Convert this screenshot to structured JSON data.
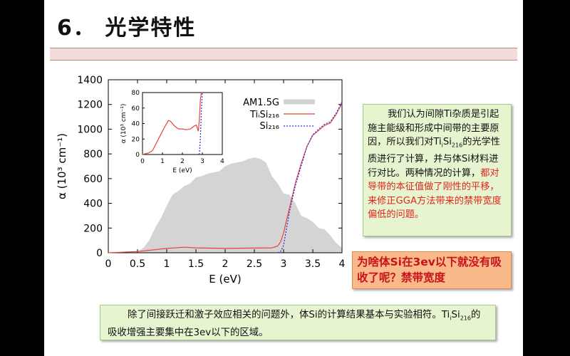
{
  "slide": {
    "title": "6． 光学特性"
  },
  "chart_data": [
    {
      "type": "area",
      "xlabel": "E (eV)",
      "ylabel": "α (10³ cm⁻¹)",
      "xlim": [
        0,
        4
      ],
      "ylim": [
        0,
        1400
      ],
      "x_ticks": [
        "0",
        "0.5",
        "1",
        "1.5",
        "2",
        "2.5",
        "3",
        "3.5",
        "4"
      ],
      "y_ticks": [
        "0",
        "200",
        "400",
        "600",
        "800",
        "1000",
        "1200",
        "1400"
      ],
      "legend": [
        "AM1.5G",
        "TiᵢSi₂₁₆",
        "Si₂₁₆"
      ],
      "series": [
        {
          "name": "AM1.5G",
          "x": [
            0.3,
            0.5,
            0.6,
            0.7,
            0.8,
            0.9,
            1.0,
            1.1,
            1.2,
            1.3,
            1.4,
            1.5,
            1.6,
            1.7,
            1.8,
            1.9,
            2.0,
            2.1,
            2.2,
            2.3,
            2.4,
            2.5,
            2.6,
            2.7,
            2.8,
            2.9,
            3.0,
            3.1,
            3.2,
            3.3,
            3.4,
            3.5,
            3.6,
            3.7,
            3.8,
            3.9,
            4.0
          ],
          "values": [
            0,
            10,
            40,
            100,
            200,
            280,
            380,
            470,
            500,
            540,
            560,
            610,
            620,
            640,
            650,
            660,
            700,
            720,
            730,
            740,
            760,
            770,
            760,
            730,
            620,
            560,
            480,
            470,
            400,
            300,
            280,
            250,
            200,
            190,
            140,
            80,
            40
          ]
        },
        {
          "name": "TiᵢSi₂₁₆",
          "x": [
            0.0,
            0.5,
            1.0,
            1.3,
            1.5,
            2.0,
            2.5,
            2.8,
            2.9,
            2.95,
            3.0,
            3.1,
            3.2,
            3.3,
            3.4,
            3.5,
            3.6,
            3.7,
            3.8,
            3.9,
            4.0
          ],
          "values": [
            0,
            10,
            35,
            45,
            40,
            35,
            38,
            40,
            55,
            90,
            160,
            360,
            560,
            720,
            860,
            950,
            990,
            1030,
            1050,
            1120,
            1210
          ]
        },
        {
          "name": "Si₂₁₆",
          "x": [
            2.9,
            2.95,
            3.0,
            3.1,
            3.2,
            3.3,
            3.4,
            3.5,
            3.6,
            3.7,
            3.8,
            3.9,
            4.0
          ],
          "values": [
            0,
            10,
            60,
            330,
            540,
            700,
            860,
            955,
            1000,
            1040,
            1060,
            1130,
            1220
          ]
        }
      ]
    },
    {
      "type": "line",
      "xlabel": "E (eV)",
      "ylabel": "α (10³ cm⁻¹)",
      "xlim": [
        0,
        4
      ],
      "ylim": [
        0,
        80
      ],
      "x_ticks": [
        "0",
        "1",
        "2",
        "3",
        "4"
      ],
      "y_ticks": [
        "0",
        "20",
        "40",
        "60",
        "80"
      ],
      "series": [
        {
          "name": "TiᵢSi₂₁₆",
          "x": [
            0.0,
            0.3,
            0.5,
            0.7,
            0.9,
            1.1,
            1.3,
            1.4,
            1.6,
            1.8,
            2.0,
            2.2,
            2.4,
            2.6,
            2.7,
            2.8,
            2.85,
            2.9,
            2.95
          ],
          "values": [
            0,
            2,
            5,
            15,
            25,
            35,
            44,
            43,
            37,
            33,
            33,
            32,
            33,
            37,
            38,
            30,
            45,
            70,
            80
          ]
        },
        {
          "name": "Si₂₁₆",
          "x": [
            2.85,
            2.9,
            2.95,
            3.0
          ],
          "values": [
            0,
            20,
            55,
            80
          ]
        }
      ]
    }
  ],
  "note1": {
    "text_a": "我们认为间隙Ti杂质是引起施主能级和形成中间带的主要原因，所以我们对",
    "ti": "Ti",
    "ti_sub": "i",
    "si": "Si",
    "si_sub": "216",
    "text_b": "的光学性质进行了计算，并与体Si材料进行对比。两种情况的计算，",
    "text_red": "都对导带的本征值做了刚性的平移，来修正GGA方法带来的禁带宽度偏低的问题。"
  },
  "callout": {
    "text": "为啥体Si在3ev以下就没有吸收了呢？禁带宽度"
  },
  "bottom": {
    "text_a": "除了间接跃迁和激子效应相关的问题外，体Si的计算结果基本与实验相符。",
    "ti": "Ti",
    "ti_sub": "i",
    "si": "Si",
    "si_sub": "216",
    "text_b": "的吸收增强主要集中在3ev以下的区域。"
  },
  "colors": {
    "am15": "#d4d4d4",
    "tisi": "#e8423a",
    "si": "#2a2ae0"
  }
}
